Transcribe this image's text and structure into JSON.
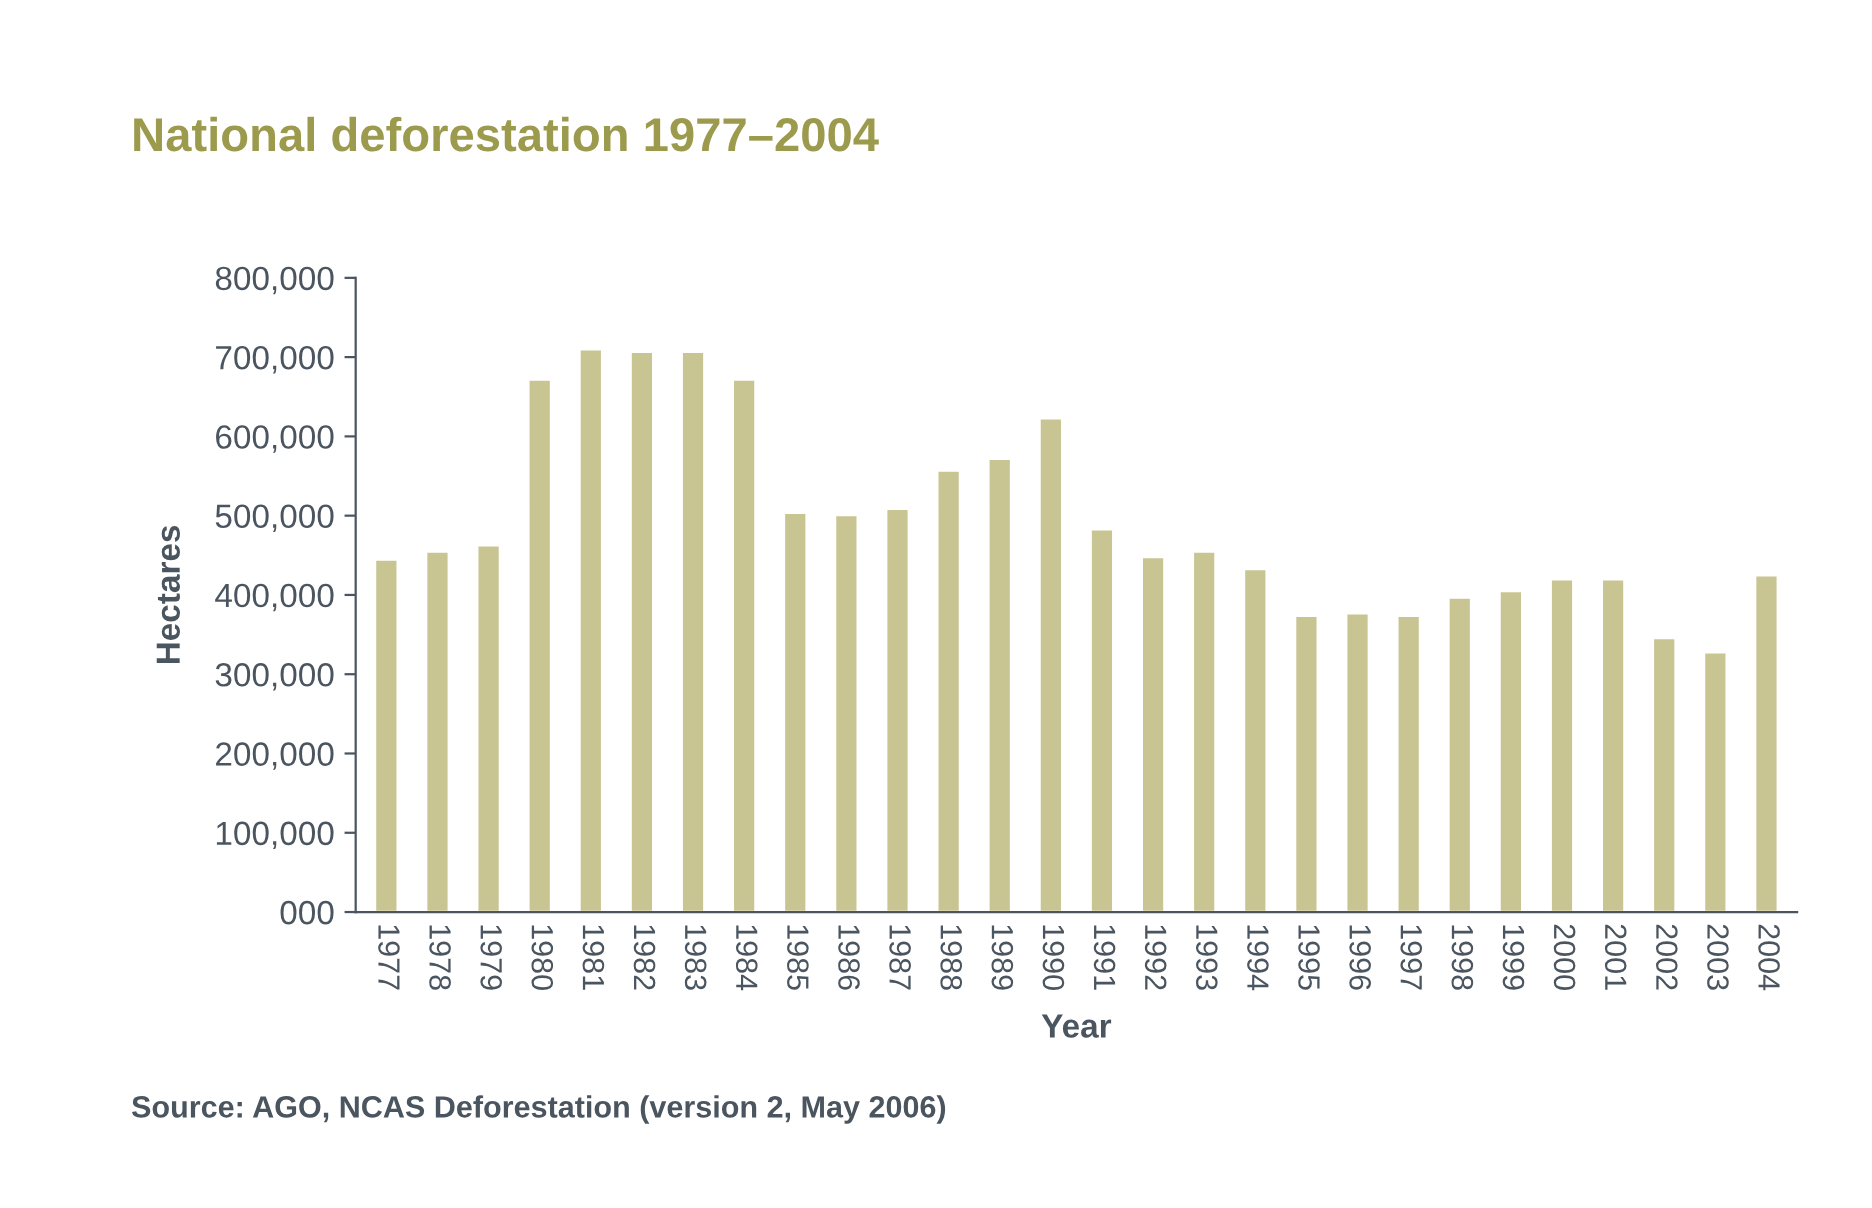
{
  "chart_data": {
    "type": "bar",
    "title": "National deforestation 1977–2004",
    "xlabel": "Year",
    "ylabel": "Hectares",
    "categories": [
      "1977",
      "1978",
      "1979",
      "1980",
      "1981",
      "1982",
      "1983",
      "1984",
      "1985",
      "1986",
      "1987",
      "1988",
      "1989",
      "1990",
      "1991",
      "1992",
      "1993",
      "1994",
      "1995",
      "1996",
      "1997",
      "1998",
      "1999",
      "2000",
      "2001",
      "2002",
      "2003",
      "2004"
    ],
    "values": [
      445000,
      455000,
      463000,
      672000,
      710000,
      707000,
      707000,
      672000,
      504000,
      501000,
      509000,
      557000,
      572000,
      623000,
      483000,
      448000,
      455000,
      433000,
      374000,
      377000,
      374000,
      397000,
      405000,
      420000,
      420000,
      346000,
      328000,
      425000
    ],
    "color": "#c8c592",
    "ylim": [
      0,
      800000
    ],
    "yticks": [
      {
        "value": 0,
        "label": "000"
      },
      {
        "value": 100000,
        "label": "100,000"
      },
      {
        "value": 200000,
        "label": "200,000"
      },
      {
        "value": 300000,
        "label": "300,000"
      },
      {
        "value": 400000,
        "label": "400,000"
      },
      {
        "value": 500000,
        "label": "500,000"
      },
      {
        "value": 600000,
        "label": "600,000"
      },
      {
        "value": 700000,
        "label": "700,000"
      },
      {
        "value": 800000,
        "label": "800,000"
      }
    ],
    "grid": false,
    "legend": false,
    "annotations": [
      "Source: AGO, NCAS Deforestation (version 2, May 2006)"
    ]
  }
}
